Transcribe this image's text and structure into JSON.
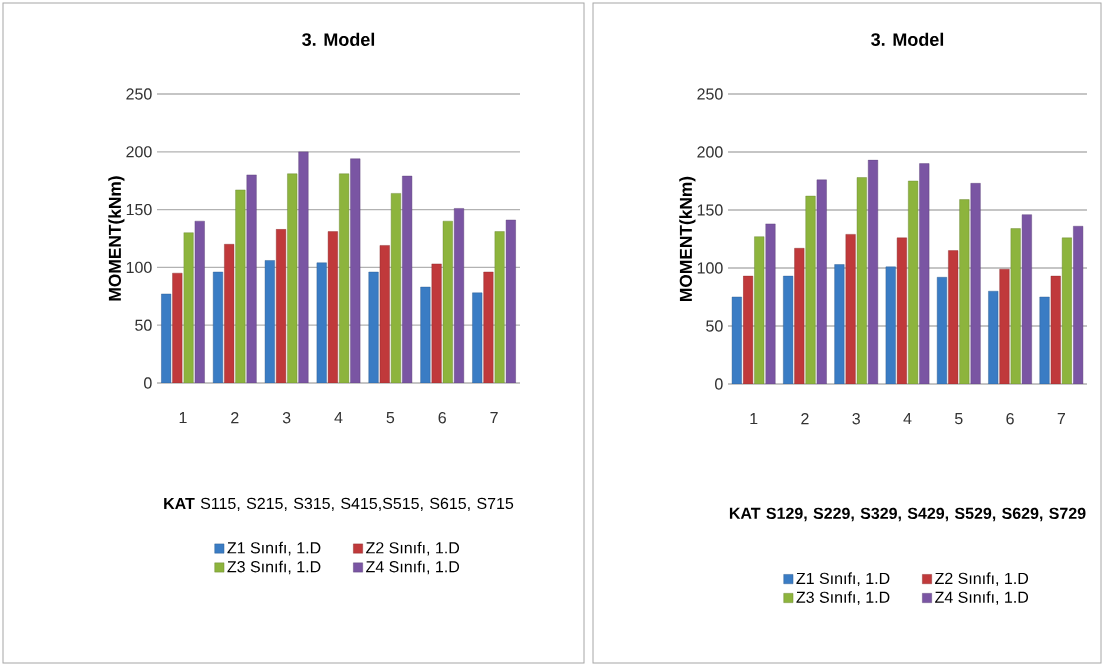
{
  "chart_data": [
    {
      "type": "bar",
      "title": "3. Model",
      "xlabel": "**KAT** S115, S215, S315, S415,S515, S615, S715",
      "ylabel": "MOMENT(kNm)",
      "categories": [
        "1",
        "2",
        "3",
        "4",
        "5",
        "6",
        "7"
      ],
      "series": [
        {
          "name": "Z1 Sınıfı, 1.D",
          "color": "#3a7cc4",
          "values": [
            77,
            96,
            106,
            104,
            96,
            83,
            78
          ]
        },
        {
          "name": "Z2 Sınıfı, 1.D",
          "color": "#c0393b",
          "values": [
            95,
            120,
            133,
            131,
            119,
            103,
            96
          ]
        },
        {
          "name": "Z3 Sınıfı, 1.D",
          "color": "#8db43d",
          "values": [
            130,
            167,
            181,
            181,
            164,
            140,
            131
          ]
        },
        {
          "name": "Z4 Sınıfı, 1.D",
          "color": "#7a55a3",
          "values": [
            140,
            180,
            200,
            194,
            179,
            151,
            141
          ]
        }
      ],
      "ylim": [
        0,
        250
      ],
      "yticks": [
        0,
        50,
        100,
        150,
        200,
        250
      ],
      "grid": "y",
      "legend": "bottom"
    },
    {
      "type": "bar",
      "title": "3. Model",
      "xlabel": "**KAT S129, S229, S329, S429, S529, S629, S729**",
      "ylabel": "MOMENT(kNm)",
      "categories": [
        "1",
        "2",
        "3",
        "4",
        "5",
        "6",
        "7"
      ],
      "series": [
        {
          "name": "Z1 Sınıfı, 1.D",
          "color": "#3a7cc4",
          "values": [
            75,
            93,
            103,
            101,
            92,
            80,
            75
          ]
        },
        {
          "name": "Z2 Sınıfı, 1.D",
          "color": "#c0393b",
          "values": [
            93,
            117,
            129,
            126,
            115,
            99,
            93
          ]
        },
        {
          "name": "Z3 Sınıfı, 1.D",
          "color": "#8db43d",
          "values": [
            127,
            162,
            178,
            175,
            159,
            134,
            126
          ]
        },
        {
          "name": "Z4 Sınıfı, 1.D",
          "color": "#7a55a3",
          "values": [
            138,
            176,
            193,
            190,
            173,
            146,
            136
          ]
        }
      ],
      "ylim": [
        0,
        250
      ],
      "yticks": [
        0,
        50,
        100,
        150,
        200,
        250
      ],
      "grid": "y",
      "legend": "bottom"
    }
  ]
}
